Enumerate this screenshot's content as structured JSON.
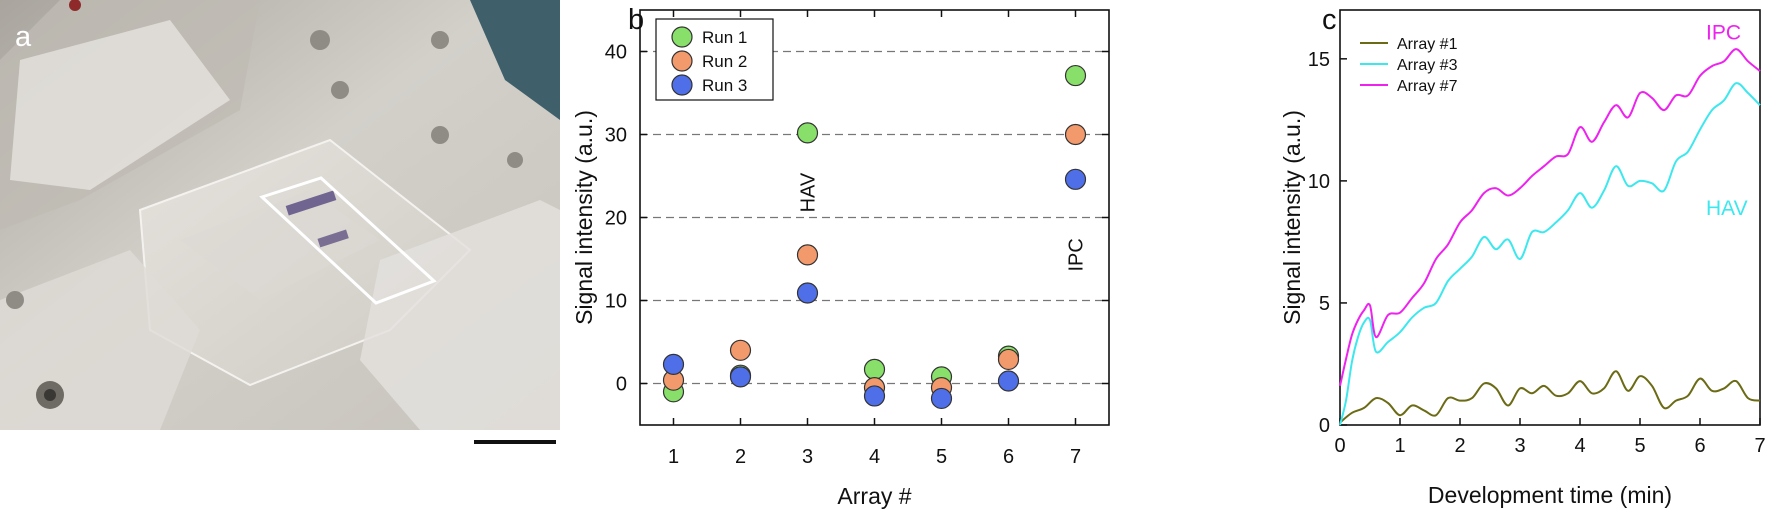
{
  "figure": {
    "panel_a": {
      "label": "a",
      "scale_bar": true,
      "colors": {
        "plastic": "#d9d6d0",
        "background_top": "#b5b1aa",
        "teal_corner": "#3f5f6a",
        "highlight_box": "#ffffff"
      }
    },
    "panel_b_label": "b",
    "panel_c_label": "c"
  },
  "chart_data": [
    {
      "type": "scatter",
      "panel": "b",
      "xlabel": "Array #",
      "ylabel": "Signal intensity (a.u.)",
      "xlim": [
        0.5,
        7.5
      ],
      "ylim": [
        -5,
        45
      ],
      "x_ticks": [
        1,
        2,
        3,
        4,
        5,
        6,
        7
      ],
      "y_ticks": [
        0,
        10,
        20,
        30,
        40
      ],
      "grid": "horizontal dashed",
      "legend_position": "top-left",
      "series": [
        {
          "name": "Run 1",
          "color": "#88e06a",
          "x": [
            1,
            2,
            3,
            4,
            5,
            6,
            7
          ],
          "y": [
            -1,
            1,
            30.2,
            1.7,
            0.8,
            3.3,
            37.1
          ]
        },
        {
          "name": "Run 2",
          "color": "#f39a6c",
          "x": [
            1,
            2,
            3,
            4,
            5,
            6,
            7
          ],
          "y": [
            0.4,
            4,
            15.5,
            -0.5,
            -0.5,
            2.9,
            30
          ]
        },
        {
          "name": "Run 3",
          "color": "#4f6fe8",
          "x": [
            1,
            2,
            3,
            4,
            5,
            6,
            7
          ],
          "y": [
            2.3,
            0.8,
            10.9,
            -1.5,
            -1.8,
            0.3,
            24.6
          ]
        }
      ],
      "annotations": [
        {
          "text": "HAV",
          "x": 3,
          "y": 23,
          "rotation": -90
        },
        {
          "text": "IPC",
          "x": 7,
          "y": 15.5,
          "rotation": -90
        }
      ]
    },
    {
      "type": "line",
      "panel": "c",
      "xlabel": "Development time (min)",
      "ylabel": "Signal intensity (a.u.)",
      "xlim": [
        0,
        7
      ],
      "ylim": [
        0,
        17
      ],
      "x_ticks": [
        0,
        1,
        2,
        3,
        4,
        5,
        6,
        7
      ],
      "y_ticks": [
        0,
        5,
        10,
        15
      ],
      "legend_position": "top-left",
      "series": [
        {
          "name": "Array #1",
          "color": "#6b6b16",
          "x": [
            0,
            0.2,
            0.4,
            0.6,
            0.8,
            1.0,
            1.2,
            1.4,
            1.6,
            1.8,
            2.0,
            2.2,
            2.4,
            2.6,
            2.8,
            3.0,
            3.2,
            3.4,
            3.6,
            3.8,
            4.0,
            4.2,
            4.4,
            4.6,
            4.8,
            5.0,
            5.2,
            5.4,
            5.6,
            5.8,
            6.0,
            6.2,
            6.4,
            6.6,
            6.8,
            7.0
          ],
          "y": [
            0.1,
            0.5,
            0.7,
            1.1,
            0.9,
            0.4,
            0.8,
            0.6,
            0.4,
            1.1,
            1.0,
            1.1,
            1.7,
            1.5,
            0.8,
            1.5,
            1.3,
            1.6,
            1.2,
            1.3,
            1.8,
            1.3,
            1.5,
            2.2,
            1.4,
            2.0,
            1.6,
            0.7,
            1.0,
            1.2,
            1.9,
            1.4,
            1.5,
            1.8,
            1.1,
            1.0
          ]
        },
        {
          "name": "Array #3",
          "color": "#3ce8ee",
          "x": [
            0,
            0.1,
            0.2,
            0.3,
            0.4,
            0.5,
            0.6,
            0.8,
            1.0,
            1.2,
            1.4,
            1.6,
            1.8,
            2.0,
            2.2,
            2.4,
            2.6,
            2.8,
            3.0,
            3.2,
            3.4,
            3.6,
            3.8,
            4.0,
            4.2,
            4.4,
            4.6,
            4.8,
            5.0,
            5.2,
            5.4,
            5.6,
            5.8,
            6.0,
            6.2,
            6.4,
            6.6,
            6.8,
            7.0
          ],
          "y": [
            0,
            1.0,
            2.6,
            3.6,
            4.2,
            4.3,
            3.0,
            3.4,
            3.8,
            4.4,
            4.8,
            5.0,
            5.9,
            6.4,
            6.9,
            7.7,
            7.2,
            7.6,
            6.8,
            7.9,
            7.9,
            8.3,
            8.8,
            9.5,
            8.9,
            9.6,
            10.6,
            9.8,
            10.0,
            9.9,
            9.6,
            10.8,
            11.2,
            12.1,
            12.9,
            13.3,
            14.0,
            13.6,
            13.1
          ]
        },
        {
          "name": "Array #7",
          "color": "#ee22ee",
          "x": [
            0,
            0.1,
            0.2,
            0.3,
            0.4,
            0.5,
            0.6,
            0.8,
            1.0,
            1.2,
            1.4,
            1.6,
            1.8,
            2.0,
            2.2,
            2.4,
            2.6,
            2.8,
            3.0,
            3.2,
            3.4,
            3.6,
            3.8,
            4.0,
            4.2,
            4.4,
            4.6,
            4.8,
            5.0,
            5.2,
            5.4,
            5.6,
            5.8,
            6.0,
            6.2,
            6.4,
            6.6,
            6.8,
            7.0
          ],
          "y": [
            1.6,
            2.7,
            3.7,
            4.3,
            4.7,
            4.9,
            3.6,
            4.5,
            4.6,
            5.2,
            5.8,
            6.8,
            7.4,
            8.3,
            8.8,
            9.5,
            9.7,
            9.4,
            9.7,
            10.2,
            10.6,
            11.0,
            11.1,
            12.2,
            11.6,
            12.4,
            13.1,
            12.6,
            13.6,
            13.4,
            12.9,
            13.5,
            13.5,
            14.3,
            14.7,
            14.9,
            15.4,
            14.9,
            14.5
          ]
        }
      ],
      "annotations": [
        {
          "text": "IPC",
          "x": 6.1,
          "y": 15.8,
          "color": "#ee22ee"
        },
        {
          "text": "HAV",
          "x": 6.1,
          "y": 8.6,
          "color": "#3ce8ee"
        }
      ]
    }
  ]
}
